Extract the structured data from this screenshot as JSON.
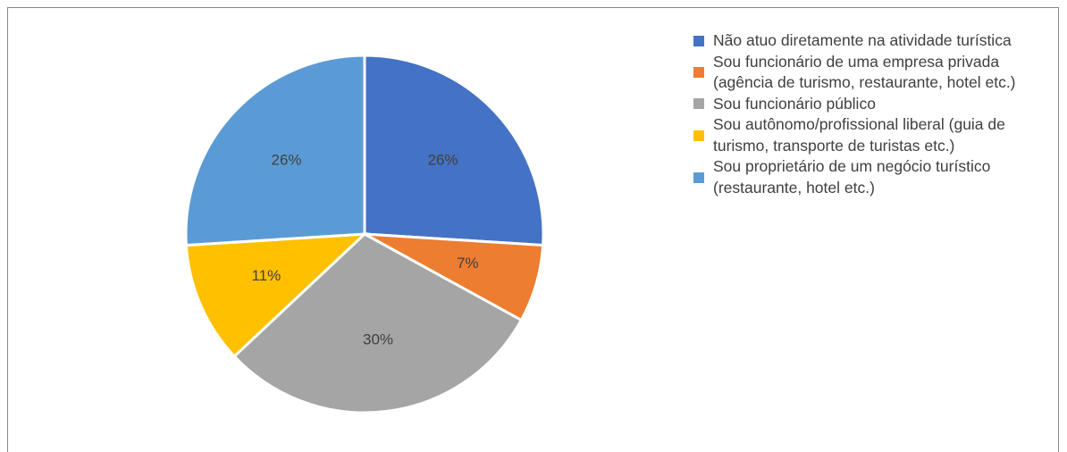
{
  "chart_data": {
    "type": "pie",
    "categories": [
      "Não atuo diretamente na atividade turística",
      "Sou funcionário de uma empresa privada (agência de turismo, restaurante, hotel etc.)",
      "Sou funcionário público",
      "Sou autônomo/profissional liberal (guia de turismo, transporte de turistas etc.)",
      "Sou proprietário de um negócio turístico (restaurante, hotel etc.)"
    ],
    "values": [
      26,
      7,
      30,
      11,
      26
    ],
    "value_labels": [
      "26%",
      "7%",
      "30%",
      "11%",
      "26%"
    ],
    "colors": [
      "#4472c4",
      "#ed7d31",
      "#a5a5a5",
      "#ffc000",
      "#5b9bd5"
    ],
    "legend": "right"
  }
}
